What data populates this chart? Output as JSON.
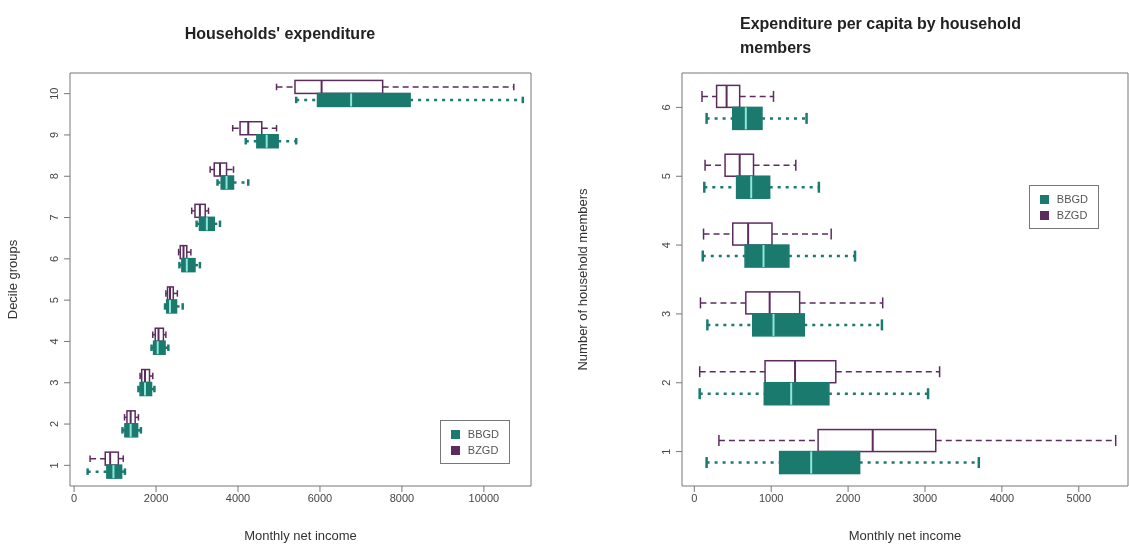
{
  "chart_data": [
    {
      "type": "box",
      "title": "Households' expenditure",
      "orientation": "horizontal",
      "xlabel": "Monthly net income",
      "ylabel": "Decile groups",
      "categories": [
        "10",
        "9",
        "8",
        "7",
        "6",
        "5",
        "4",
        "3",
        "2",
        "1"
      ],
      "xlim": [
        -100,
        11150
      ],
      "xticks": [
        0,
        2000,
        4000,
        6000,
        8000,
        10000
      ],
      "legend": "bottom right",
      "series": [
        {
          "name": "BBGD",
          "color": "#1a7a6e",
          "line_style": "dotted",
          "boxes": [
            {
              "low": 5420,
              "q1": 5940,
              "median": 6760,
              "q3": 8200,
              "high": 10950
            },
            {
              "low": 4190,
              "q1": 4460,
              "median": 4700,
              "q3": 4980,
              "high": 5420
            },
            {
              "low": 3500,
              "q1": 3590,
              "median": 3720,
              "q3": 3890,
              "high": 4250
            },
            {
              "low": 2990,
              "q1": 3060,
              "median": 3240,
              "q3": 3420,
              "high": 3560
            },
            {
              "low": 2570,
              "q1": 2630,
              "median": 2750,
              "q3": 2950,
              "high": 3070
            },
            {
              "low": 2220,
              "q1": 2260,
              "median": 2340,
              "q3": 2500,
              "high": 2650
            },
            {
              "low": 1890,
              "q1": 1940,
              "median": 2040,
              "q3": 2220,
              "high": 2300
            },
            {
              "low": 1570,
              "q1": 1610,
              "median": 1730,
              "q3": 1890,
              "high": 1960
            },
            {
              "low": 1180,
              "q1": 1240,
              "median": 1380,
              "q3": 1550,
              "high": 1630
            },
            {
              "low": 330,
              "q1": 800,
              "median": 960,
              "q3": 1160,
              "high": 1240
            }
          ]
        },
        {
          "name": "BZGD",
          "color": "#5b2c5e",
          "line_style": "dashed",
          "boxes": [
            {
              "low": 4940,
              "q1": 5390,
              "median": 6040,
              "q3": 7530,
              "high": 10730
            },
            {
              "low": 3870,
              "q1": 4050,
              "median": 4250,
              "q3": 4580,
              "high": 4940
            },
            {
              "low": 3320,
              "q1": 3420,
              "median": 3560,
              "q3": 3720,
              "high": 3890
            },
            {
              "low": 2870,
              "q1": 2950,
              "median": 3070,
              "q3": 3200,
              "high": 3280
            },
            {
              "low": 2550,
              "q1": 2590,
              "median": 2670,
              "q3": 2750,
              "high": 2850
            },
            {
              "low": 2240,
              "q1": 2280,
              "median": 2340,
              "q3": 2420,
              "high": 2520
            },
            {
              "low": 1920,
              "q1": 1980,
              "median": 2060,
              "q3": 2180,
              "high": 2240
            },
            {
              "low": 1610,
              "q1": 1650,
              "median": 1730,
              "q3": 1840,
              "high": 1920
            },
            {
              "low": 1230,
              "q1": 1290,
              "median": 1380,
              "q3": 1490,
              "high": 1570
            },
            {
              "low": 390,
              "q1": 760,
              "median": 880,
              "q3": 1080,
              "high": 1200
            }
          ]
        }
      ]
    },
    {
      "type": "box",
      "title": "Expenditure per capita by household members",
      "orientation": "horizontal",
      "xlabel": "Monthly net income",
      "ylabel": "Number of household members",
      "categories": [
        "6",
        "5",
        "4",
        "3",
        "2",
        "1"
      ],
      "xlim": [
        -160,
        5640
      ],
      "xticks": [
        0,
        1000,
        2000,
        3000,
        4000,
        5000
      ],
      "legend": "right",
      "series": [
        {
          "name": "BBGD",
          "color": "#1a7a6e",
          "line_style": "dotted",
          "boxes": [
            {
              "low": 160,
              "q1": 500,
              "median": 670,
              "q3": 880,
              "high": 1460
            },
            {
              "low": 130,
              "q1": 550,
              "median": 740,
              "q3": 980,
              "high": 1620
            },
            {
              "low": 110,
              "q1": 660,
              "median": 900,
              "q3": 1230,
              "high": 2090
            },
            {
              "low": 170,
              "q1": 760,
              "median": 1030,
              "q3": 1430,
              "high": 2440
            },
            {
              "low": 70,
              "q1": 910,
              "median": 1260,
              "q3": 1750,
              "high": 3040
            },
            {
              "low": 160,
              "q1": 1110,
              "median": 1520,
              "q3": 2150,
              "high": 3700
            }
          ]
        },
        {
          "name": "BZGD",
          "color": "#5b2c5e",
          "line_style": "dashed",
          "boxes": [
            {
              "low": 100,
              "q1": 290,
              "median": 420,
              "q3": 590,
              "high": 1030
            },
            {
              "low": 140,
              "q1": 400,
              "median": 590,
              "q3": 770,
              "high": 1320
            },
            {
              "low": 120,
              "q1": 500,
              "median": 700,
              "q3": 1010,
              "high": 1780
            },
            {
              "low": 80,
              "q1": 670,
              "median": 980,
              "q3": 1370,
              "high": 2450
            },
            {
              "low": 70,
              "q1": 920,
              "median": 1310,
              "q3": 1840,
              "high": 3190
            },
            {
              "low": 320,
              "q1": 1610,
              "median": 2320,
              "q3": 3140,
              "high": 5480
            }
          ]
        }
      ]
    }
  ]
}
